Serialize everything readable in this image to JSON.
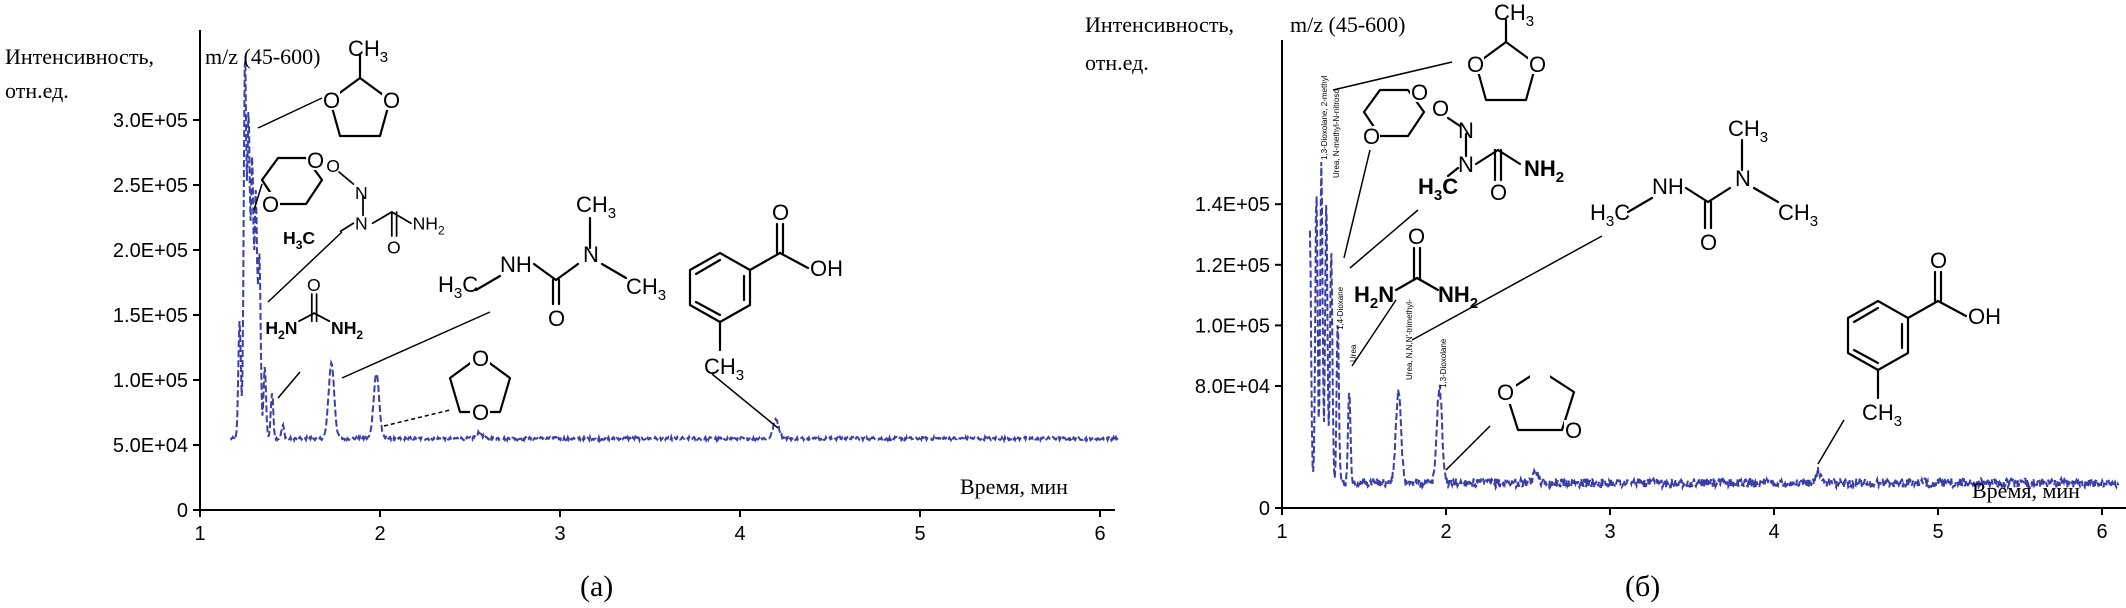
{
  "panels": [
    {
      "id": "a",
      "ylabel_line1": "Интенсивность,",
      "ylabel_line2": "отн.ед.",
      "mz_label": "m/z (45-600)",
      "xlabel": "Время, мин",
      "caption": "(a)",
      "x_ticks": [
        "1",
        "2",
        "3",
        "4",
        "5",
        "6"
      ],
      "y_ticks": [
        "0",
        "5.0E+04",
        "1.0E+05",
        "1.5E+05",
        "2.0E+05",
        "2.5E+05",
        "3.0E+05"
      ],
      "chem_labels": {
        "ch3_dioxolane": "CH",
        "ch3_dioxolane_sub": "3",
        "o": "O",
        "n": "N",
        "h3c": "H",
        "h3c_sub": "3",
        "h3c_c": "C",
        "nh": "NH",
        "nh2": "NH",
        "nh2_sub": "2",
        "h2n": "H",
        "h2n_sub": "2",
        "h2n_n": "N",
        "ch3": "CH",
        "ch3_sub": "3",
        "oh": "OH"
      }
    },
    {
      "id": "b",
      "ylabel_line1": "Интенсивность,",
      "ylabel_line2": "отн.ед.",
      "mz_label": "m/z (45-600)",
      "xlabel": "Время, мин",
      "caption": "(б)",
      "x_ticks": [
        "1",
        "2",
        "3",
        "4",
        "5",
        "6"
      ],
      "y_ticks": [
        "0",
        "8.0E+04",
        "1.0E+05",
        "1.2E+05",
        "1.4E+05"
      ],
      "peak_annotations": [
        "1,3-Dioxolane, 2-methyl",
        "Urea, N-methyl-N-nitroso",
        "1,4-Dioxane",
        "Urea",
        "Urea, N,N,N'-trimethyl-",
        "1,3-Dioxolane"
      ],
      "chem_labels": {
        "ch3_dioxolane": "CH",
        "ch3_dioxolane_sub": "3",
        "o": "O",
        "n": "N",
        "h3c": "H",
        "h3c_sub": "3",
        "h3c_c": "C",
        "nh": "NH",
        "nh2": "NH",
        "nh2_sub": "2",
        "h2n": "H",
        "h2n_sub": "2",
        "h2n_n": "N",
        "ch3": "CH",
        "ch3_sub": "3",
        "oh": "OH"
      }
    }
  ],
  "colors": {
    "trace": "#3a3fa8",
    "axis": "#000000"
  },
  "chart_data": [
    {
      "type": "line",
      "title": "",
      "xlabel": "Время, мин",
      "ylabel": "Интенсивность, отн.ед.",
      "xlim": [
        1,
        6.1
      ],
      "ylim": [
        0,
        350000
      ],
      "grid": false,
      "legend": "none",
      "baseline": 55000,
      "peaks": [
        {
          "x": 1.22,
          "y": 145000
        },
        {
          "x": 1.25,
          "y": 350000
        },
        {
          "x": 1.27,
          "y": 300000
        },
        {
          "x": 1.29,
          "y": 265000
        },
        {
          "x": 1.31,
          "y": 240000
        },
        {
          "x": 1.33,
          "y": 195000
        },
        {
          "x": 1.36,
          "y": 110000
        },
        {
          "x": 1.4,
          "y": 90000
        },
        {
          "x": 1.46,
          "y": 65000
        },
        {
          "x": 1.73,
          "y": 113000
        },
        {
          "x": 1.98,
          "y": 105000
        },
        {
          "x": 2.55,
          "y": 60000
        },
        {
          "x": 4.2,
          "y": 70000
        }
      ],
      "annotations": [
        "2-methyl-1,3-dioxolane",
        "1,4-dioxane",
        "N-methyl-N-nitrosourea",
        "urea",
        "N,N,N'-trimethylurea",
        "1,3-dioxolane",
        "3-methylbenzoic acid"
      ]
    },
    {
      "type": "line",
      "title": "",
      "xlabel": "Время, мин",
      "ylabel": "Интенсивность, отн.ед.",
      "xlim": [
        1,
        6.1
      ],
      "ylim": [
        0,
        160000
      ],
      "grid": false,
      "legend": "none",
      "baseline": 48000,
      "peaks": [
        {
          "x": 1.17,
          "y": 130000
        },
        {
          "x": 1.21,
          "y": 145000
        },
        {
          "x": 1.24,
          "y": 155000
        },
        {
          "x": 1.27,
          "y": 140000
        },
        {
          "x": 1.3,
          "y": 125000
        },
        {
          "x": 1.34,
          "y": 100000
        },
        {
          "x": 1.41,
          "y": 80000
        },
        {
          "x": 1.71,
          "y": 78000
        },
        {
          "x": 1.96,
          "y": 80000
        },
        {
          "x": 2.55,
          "y": 52000
        },
        {
          "x": 4.27,
          "y": 52000
        }
      ],
      "annotations": [
        "2-methyl-1,3-dioxolane",
        "1,4-dioxane",
        "N-methyl-N-nitrosourea",
        "urea",
        "N,N,N'-trimethylurea",
        "1,3-dioxolane",
        "3-methylbenzoic acid"
      ]
    }
  ]
}
